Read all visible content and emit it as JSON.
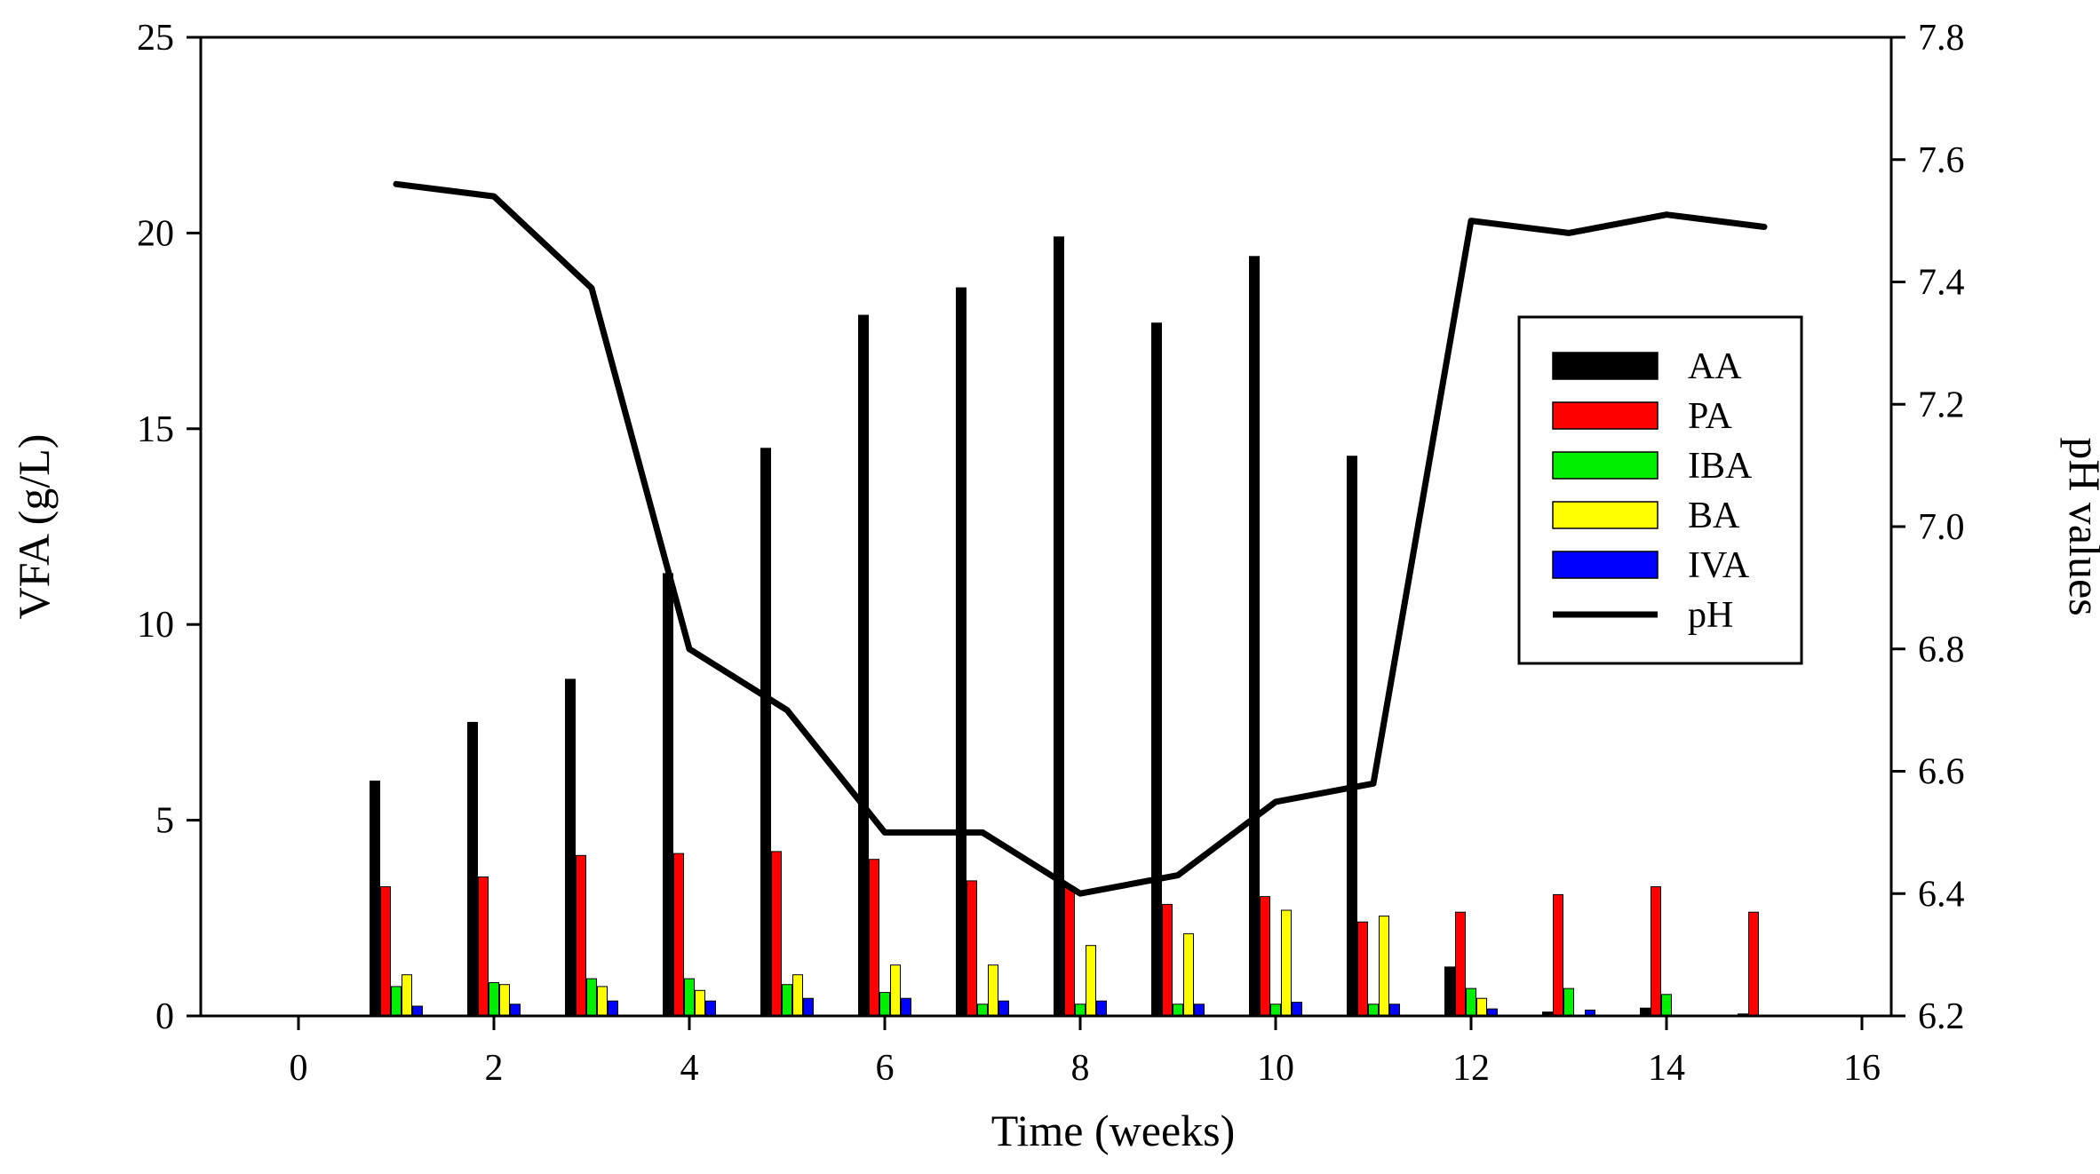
{
  "chart_data": {
    "type": "bar",
    "xlabel": "Time (weeks)",
    "ylabel": "VFA (g/L)",
    "y2label": "pH values",
    "xlim": [
      -1,
      16.3
    ],
    "ylim": [
      0,
      25
    ],
    "y2lim": [
      6.2,
      7.8
    ],
    "xticks": [
      0,
      2,
      4,
      6,
      8,
      10,
      12,
      14,
      16
    ],
    "yticks": [
      0,
      5,
      10,
      15,
      20,
      25
    ],
    "y2ticks": [
      "6.2",
      "6.4",
      "6.6",
      "6.8",
      "7.0",
      "7.2",
      "7.4",
      "7.6",
      "7.8"
    ],
    "x": [
      1,
      2,
      3,
      4,
      5,
      6,
      7,
      8,
      9,
      10,
      11,
      12,
      13,
      14,
      15
    ],
    "series": [
      {
        "name": "AA",
        "color": "#000000",
        "values": [
          6.0,
          7.5,
          8.6,
          11.3,
          14.5,
          17.9,
          18.6,
          19.9,
          17.7,
          19.4,
          14.3,
          1.25,
          0.1,
          0.2,
          0.05
        ]
      },
      {
        "name": "PA",
        "color": "#ff0000",
        "values": [
          3.3,
          3.55,
          4.1,
          4.15,
          4.2,
          4.0,
          3.45,
          3.3,
          2.85,
          3.05,
          2.4,
          2.65,
          3.1,
          3.3,
          2.65
        ]
      },
      {
        "name": "IBA",
        "color": "#00ee00",
        "values": [
          0.75,
          0.85,
          0.95,
          0.95,
          0.8,
          0.6,
          0.3,
          0.3,
          0.3,
          0.3,
          0.3,
          0.7,
          0.7,
          0.55,
          0.0
        ]
      },
      {
        "name": "BA",
        "color": "#ffff00",
        "values": [
          1.05,
          0.8,
          0.75,
          0.65,
          1.05,
          1.3,
          1.3,
          1.8,
          2.1,
          2.7,
          2.55,
          0.45,
          0.0,
          0.0,
          0.0
        ]
      },
      {
        "name": "IVA",
        "color": "#0000ff",
        "values": [
          0.25,
          0.3,
          0.38,
          0.38,
          0.45,
          0.45,
          0.38,
          0.38,
          0.3,
          0.35,
          0.3,
          0.18,
          0.15,
          0.0,
          0.0
        ]
      }
    ],
    "line_series": {
      "name": "pH",
      "color": "#000000",
      "axis": "right",
      "x": [
        1,
        2,
        3,
        4,
        5,
        6,
        7,
        8,
        9,
        10,
        11,
        12,
        13,
        14,
        15
      ],
      "values": [
        7.56,
        7.54,
        7.39,
        6.8,
        6.7,
        6.5,
        6.5,
        6.4,
        6.43,
        6.55,
        6.58,
        7.5,
        7.48,
        7.51,
        7.49
      ]
    },
    "legend_position": "right-center"
  }
}
